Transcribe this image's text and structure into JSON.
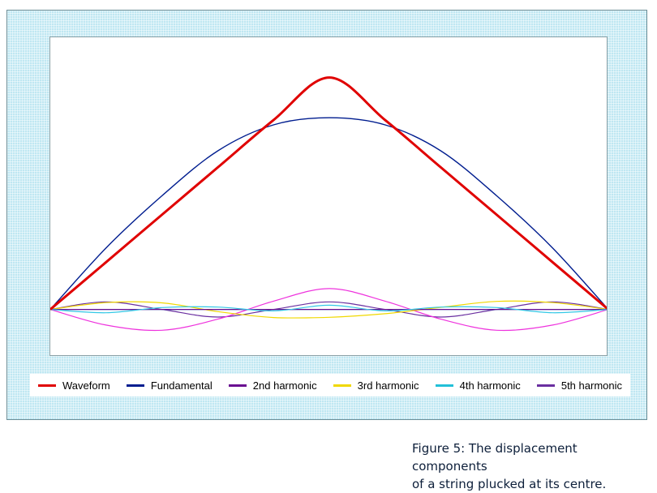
{
  "chart_data": {
    "type": "line",
    "title": "",
    "xlabel": "",
    "ylabel": "",
    "xlim": [
      0,
      1
    ],
    "ylim": [
      -0.2,
      1.15
    ],
    "grid": false,
    "legend_position": "bottom",
    "series": [
      {
        "name": "Waveform",
        "color": "#e00000",
        "x": [
          0,
          0.1,
          0.2,
          0.3,
          0.4,
          0.5,
          0.6,
          0.7,
          0.8,
          0.9,
          1
        ],
        "values": [
          0,
          0.2,
          0.4,
          0.6,
          0.8,
          0.98,
          0.8,
          0.6,
          0.4,
          0.2,
          0
        ]
      },
      {
        "name": "Fundamental",
        "color": "#001d8f",
        "x": [
          0,
          0.1,
          0.2,
          0.3,
          0.4,
          0.5,
          0.6,
          0.7,
          0.8,
          0.9,
          1
        ],
        "values": [
          0,
          0.26,
          0.48,
          0.67,
          0.78,
          0.81,
          0.78,
          0.67,
          0.48,
          0.26,
          0
        ]
      },
      {
        "name": "2nd harmonic",
        "color": "#6a0d91",
        "x": [
          0,
          0.1,
          0.2,
          0.3,
          0.4,
          0.5,
          0.6,
          0.7,
          0.8,
          0.9,
          1
        ],
        "values": [
          0,
          0,
          0,
          0,
          0,
          0,
          0,
          0,
          0,
          0,
          0
        ]
      },
      {
        "name": "3rd harmonic",
        "color": "#f0d800",
        "x": [
          0,
          0.1,
          0.2,
          0.3,
          0.4,
          0.5,
          0.6,
          0.7,
          0.8,
          0.9,
          1
        ],
        "values": [
          0,
          0.029,
          0.028,
          -0.009,
          -0.034,
          -0.033,
          -0.018,
          0.009,
          0.034,
          0.029,
          0
        ]
      },
      {
        "name": "4th harmonic",
        "color": "#22c0d8",
        "x": [
          0,
          0.1,
          0.2,
          0.3,
          0.4,
          0.5,
          0.6,
          0.7,
          0.8,
          0.9,
          1
        ],
        "values": [
          0,
          0,
          0,
          0,
          0,
          0,
          0,
          0,
          0,
          0,
          0
        ]
      },
      {
        "name": "5th harmonic",
        "color": "#6a2fa0",
        "x": [
          0,
          0.1,
          0.2,
          0.3,
          0.4,
          0.5,
          0.6,
          0.7,
          0.8,
          0.9,
          1
        ],
        "values": [
          0,
          0.032,
          0,
          -0.032,
          0,
          0.032,
          0,
          -0.032,
          0,
          0.032,
          0
        ]
      },
      {
        "name": "",
        "color": "#ee33dd",
        "x": [
          0,
          0.1,
          0.2,
          0.3,
          0.4,
          0.5,
          0.6,
          0.7,
          0.8,
          0.9,
          1
        ],
        "values": [
          0,
          -0.066,
          -0.088,
          -0.041,
          0.035,
          0.088,
          0.035,
          -0.041,
          -0.088,
          -0.066,
          0
        ]
      },
      {
        "name": "",
        "color": "#33c8e6",
        "x": [
          0,
          0.1,
          0.2,
          0.3,
          0.4,
          0.5,
          0.6,
          0.7,
          0.8,
          0.9,
          1
        ],
        "values": [
          0,
          -0.014,
          0.008,
          0.01,
          -0.006,
          0.018,
          -0.006,
          0.01,
          0.008,
          -0.014,
          0
        ]
      }
    ]
  },
  "legend": {
    "items": [
      {
        "label": "Waveform",
        "color": "#e00000"
      },
      {
        "label": "Fundamental",
        "color": "#001d8f"
      },
      {
        "label": "2nd harmonic",
        "color": "#6a0d91"
      },
      {
        "label": "3rd harmonic",
        "color": "#f0d800"
      },
      {
        "label": "4th harmonic",
        "color": "#22c0d8"
      },
      {
        "label": "5th harmonic",
        "color": "#6a2fa0"
      }
    ]
  },
  "caption": {
    "line1": "Figure 5: The displacement components",
    "line2": "of a string plucked at its centre."
  }
}
